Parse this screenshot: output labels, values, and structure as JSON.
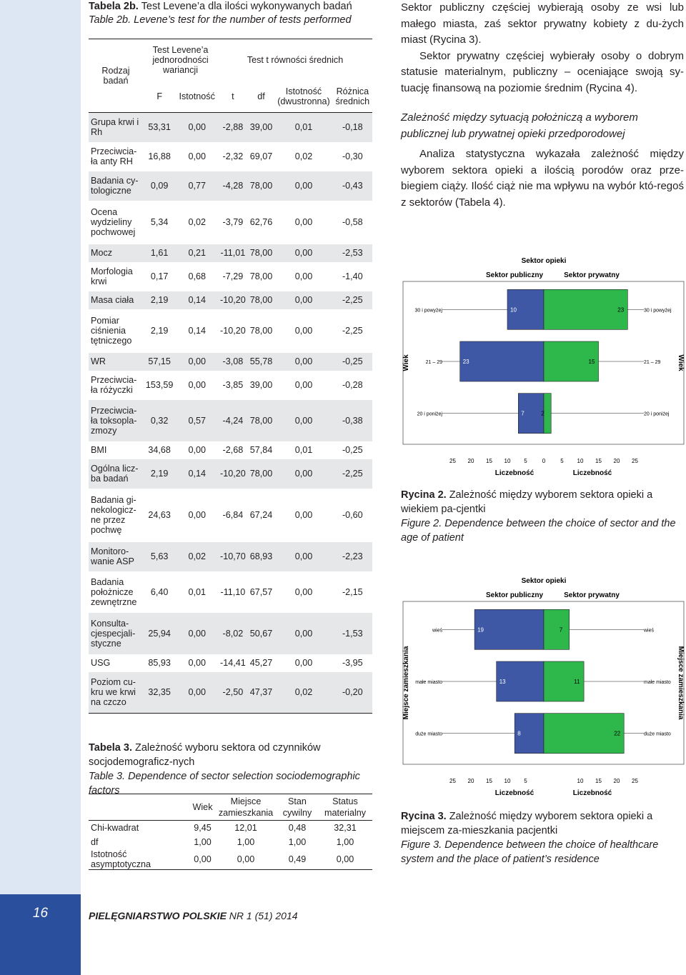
{
  "table2": {
    "title_pl_label": "Tabela 2b.",
    "title_pl_text": "Test Levene’a dla ilości wykonywanych badań",
    "title_en": "Table 2b. Levene’s test for the number of tests performed",
    "header": {
      "rodzaj": "Rodzaj badań",
      "levene": "Test Levene’a jednorodności wariancji",
      "ttest": "Test t równości średnich",
      "f": "F",
      "istotnosc": "Istotność",
      "t": "t",
      "df": "df",
      "istotnosc2": "Istotność (dwustronna)",
      "roznica": "Różnica średnich"
    },
    "rows": [
      {
        "name": "Grupa krwi i Rh",
        "f": "53,31",
        "ist": "0,00",
        "t": "-2,88",
        "df": "39,00",
        "ist2": "0,01",
        "diff": "-0,18"
      },
      {
        "name": "Przeciwcia-ła anty RH",
        "f": "16,88",
        "ist": "0,00",
        "t": "-2,32",
        "df": "69,07",
        "ist2": "0,02",
        "diff": "-0,30"
      },
      {
        "name": "Badania cy-tologiczne",
        "f": "0,09",
        "ist": "0,77",
        "t": "-4,28",
        "df": "78,00",
        "ist2": "0,00",
        "diff": "-0,43"
      },
      {
        "name": "Ocena wydzieliny pochwowej",
        "f": "5,34",
        "ist": "0,02",
        "t": "-3,79",
        "df": "62,76",
        "ist2": "0,00",
        "diff": "-0,58"
      },
      {
        "name": "Mocz",
        "f": "1,61",
        "ist": "0,21",
        "t": "-11,01",
        "df": "78,00",
        "ist2": "0,00",
        "diff": "-2,53"
      },
      {
        "name": "Morfologia krwi",
        "f": "0,17",
        "ist": "0,68",
        "t": "-7,29",
        "df": "78,00",
        "ist2": "0,00",
        "diff": "-1,40"
      },
      {
        "name": "Masa ciała",
        "f": "2,19",
        "ist": "0,14",
        "t": "-10,20",
        "df": "78,00",
        "ist2": "0,00",
        "diff": "-2,25"
      },
      {
        "name": "Pomiar ciśnienia tętniczego",
        "f": "2,19",
        "ist": "0,14",
        "t": "-10,20",
        "df": "78,00",
        "ist2": "0,00",
        "diff": "-2,25"
      },
      {
        "name": "WR",
        "f": "57,15",
        "ist": "0,00",
        "t": "-3,08",
        "df": "55,78",
        "ist2": "0,00",
        "diff": "-0,25"
      },
      {
        "name": "Przeciwcia-ła różyczki",
        "f": "153,59",
        "ist": "0,00",
        "t": "-3,85",
        "df": "39,00",
        "ist2": "0,00",
        "diff": "-0,28"
      },
      {
        "name": "Przeciwcia-ła toksopla-zmozy",
        "f": "0,32",
        "ist": "0,57",
        "t": "-4,24",
        "df": "78,00",
        "ist2": "0,00",
        "diff": "-0,38"
      },
      {
        "name": "BMI",
        "f": "34,68",
        "ist": "0,00",
        "t": "-2,68",
        "df": "57,84",
        "ist2": "0,01",
        "diff": "-0,25"
      },
      {
        "name": "Ogólna licz-ba badań",
        "f": "2,19",
        "ist": "0,14",
        "t": "-10,20",
        "df": "78,00",
        "ist2": "0,00",
        "diff": "-2,25"
      },
      {
        "name": "Badania gi-nekologicz-ne przez pochwę",
        "f": "24,63",
        "ist": "0,00",
        "t": "-6,84",
        "df": "67,24",
        "ist2": "0,00",
        "diff": "-0,60"
      },
      {
        "name": "Monitoro-wanie ASP",
        "f": "5,63",
        "ist": "0,02",
        "t": "-10,70",
        "df": "68,93",
        "ist2": "0,00",
        "diff": "-2,23"
      },
      {
        "name": "Badania położnicze zewnętrzne",
        "f": "6,40",
        "ist": "0,01",
        "t": "-11,10",
        "df": "67,57",
        "ist2": "0,00",
        "diff": "-2,15"
      },
      {
        "name": "Konsulta-cjespecjali-styczne",
        "f": "25,94",
        "ist": "0,00",
        "t": "-8,02",
        "df": "50,67",
        "ist2": "0,00",
        "diff": "-1,53"
      },
      {
        "name": "USG",
        "f": "85,93",
        "ist": "0,00",
        "t": "-14,41",
        "df": "45,27",
        "ist2": "0,00",
        "diff": "-3,95"
      },
      {
        "name": "Poziom cu-kru we krwi na czczo",
        "f": "32,35",
        "ist": "0,00",
        "t": "-2,50",
        "df": "47,37",
        "ist2": "0,02",
        "diff": "-0,20"
      }
    ]
  },
  "table3": {
    "title_pl_label": "Tabela 3.",
    "title_pl_text": "Zależność wyboru sektora od czynników socjodemograficz-nych",
    "title_en": "Table 3. Dependence of sector selection sociodemographic factors",
    "columns": [
      "",
      "Wiek",
      "Miejsce zamieszkania",
      "Stan cywilny",
      "Status materialny"
    ],
    "rows": [
      {
        "label": "Chi-kwadrat",
        "v": [
          "9,45",
          "12,01",
          "0,48",
          "32,31"
        ]
      },
      {
        "label": "df",
        "v": [
          "1,00",
          "1,00",
          "1,00",
          "1,00"
        ]
      },
      {
        "label": "Istotność asymptotyczna",
        "v": [
          "0,00",
          "0,00",
          "0,49",
          "0,00"
        ]
      }
    ]
  },
  "right_text": {
    "p1": "Sektor publiczny częściej wybierają osoby ze wsi lub małego miasta, zaś sektor prywatny kobiety z du-żych miast (Rycina 3).",
    "p2": "Sektor prywatny częściej wybierały osoby o dobrym statusie materialnym, publiczny – oceniające swoją sy-tuację finansową na poziomie średnim (Rycina 4).",
    "heading": "Zależność między sytuacją położniczą a wyborem publicznej lub prywatnej opieki przedporodowej",
    "p3": "Analiza statystyczna wykazała zależność między wyborem sektora opieki a ilością porodów oraz prze-biegiem ciąży. Ilość ciąż nie ma wpływu na wybór któ-regoś z sektorów (Tabela 4)."
  },
  "figure2": {
    "caption_label": "Rycina 2.",
    "caption_pl": "Zależność między wyborem sektora opieki a wiekiem pa-cjentki",
    "caption_en": "Figure 2. Dependence between the choice of sector and the age of patient"
  },
  "figure3": {
    "caption_label": "Rycina 3.",
    "caption_pl": "Zależność między wyborem sektora opieki a miejscem za-mieszkania pacjentki",
    "caption_en": "Figure 3. Dependence between the choice of healthcare system and the place of patient’s residence"
  },
  "chart_data": [
    {
      "type": "bar",
      "orientation": "horizontal-back-to-back",
      "title": "Sektor opieki",
      "xlabel": "Liczebność",
      "ylabel": "Wiek",
      "categories": [
        "30 i powyżej",
        "21 – 29",
        "20 i poniżej"
      ],
      "series": [
        {
          "name": "Sektor publiczny",
          "values": [
            10,
            23,
            7
          ],
          "color": "#3e58a6"
        },
        {
          "name": "Sektor prywatny",
          "values": [
            23,
            15,
            2
          ],
          "color": "#2eb74b"
        }
      ],
      "xlim": [
        0,
        25
      ],
      "ticks": [
        "25",
        "20",
        "15",
        "10",
        "5",
        "0",
        "5",
        "10",
        "15",
        "20",
        "25"
      ]
    },
    {
      "type": "bar",
      "orientation": "horizontal-back-to-back",
      "title": "Sektor opieki",
      "xlabel": "Liczebność",
      "ylabel": "Miejsce zamieszkania",
      "categories": [
        "wieś",
        "małe miasto",
        "duże miasto"
      ],
      "series": [
        {
          "name": "Sektor publiczny",
          "values": [
            19,
            13,
            8
          ],
          "color": "#3e58a6"
        },
        {
          "name": "Sektor prywatny",
          "values": [
            7,
            11,
            22
          ],
          "color": "#2eb74b"
        }
      ],
      "xlim": [
        0,
        25
      ],
      "ticks": [
        "25",
        "20",
        "15",
        "10",
        "5",
        "10",
        "15",
        "20",
        "25"
      ]
    }
  ],
  "footer": {
    "page_number": "16",
    "journal_bold": "PIELĘGNIARSTWO POLSKIE",
    "journal_rest": " NR 1 (51) 2014"
  }
}
